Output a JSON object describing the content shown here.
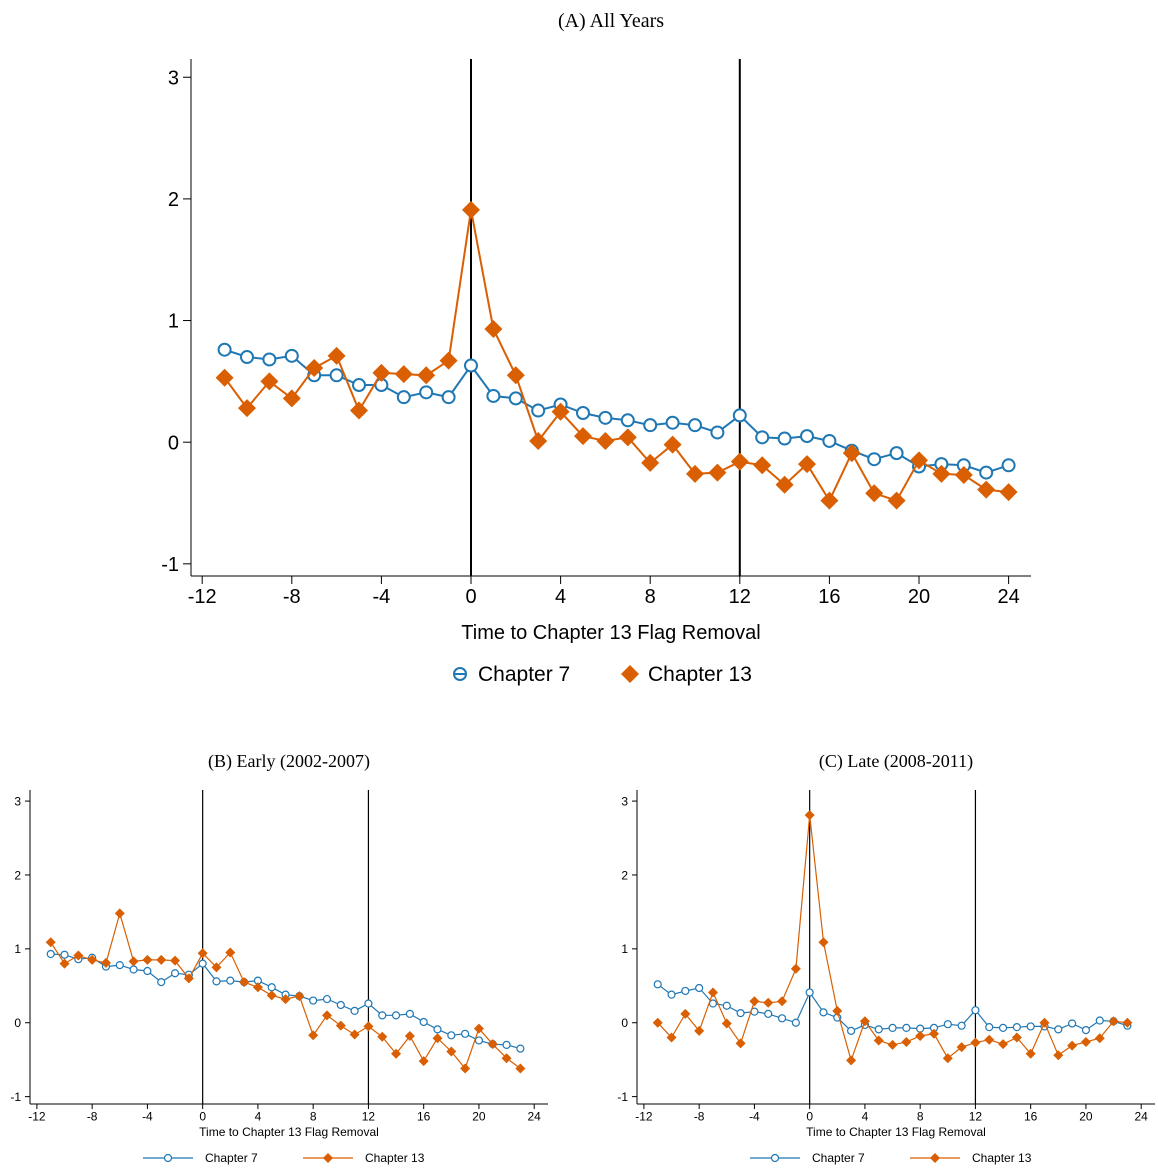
{
  "colors": {
    "chapter7": "#1f77b4",
    "chapter13": "#d95f02"
  },
  "chart_data": [
    {
      "type": "line",
      "title": "(A) All Years",
      "xlabel": "Time to Chapter 13 Flag Removal",
      "ylabel": "",
      "xlim": [
        -12.5,
        25
      ],
      "ylim": [
        -1.1,
        3.15
      ],
      "xticks": [
        -12,
        -8,
        -4,
        0,
        4,
        8,
        12,
        16,
        20,
        24
      ],
      "yticks": [
        -1,
        0,
        1,
        2,
        3
      ],
      "vlines": [
        0,
        12
      ],
      "grid": false,
      "legend_position": "bottom",
      "x": [
        -11,
        -10,
        -9,
        -8,
        -7,
        -6,
        -5,
        -4,
        -3,
        -2,
        -1,
        0,
        1,
        2,
        3,
        4,
        5,
        6,
        7,
        8,
        9,
        10,
        11,
        12,
        13,
        14,
        15,
        16,
        17,
        18,
        19,
        20,
        21,
        22,
        23,
        24
      ],
      "series": [
        {
          "name": "Chapter 7",
          "marker": "circle",
          "values": [
            0.76,
            0.7,
            0.68,
            0.71,
            0.55,
            0.55,
            0.47,
            0.47,
            0.37,
            0.41,
            0.37,
            0.63,
            0.38,
            0.36,
            0.26,
            0.31,
            0.24,
            0.2,
            0.18,
            0.14,
            0.16,
            0.14,
            0.08,
            0.22,
            0.04,
            0.03,
            0.05,
            0.01,
            -0.07,
            -0.14,
            -0.09,
            -0.2,
            -0.18,
            -0.19,
            -0.25,
            -0.19
          ]
        },
        {
          "name": "Chapter 13",
          "marker": "diamond",
          "values": [
            0.53,
            0.28,
            0.5,
            0.36,
            0.61,
            0.71,
            0.26,
            0.57,
            0.56,
            0.55,
            0.67,
            1.91,
            0.93,
            0.55,
            0.01,
            0.25,
            0.05,
            0.01,
            0.04,
            -0.17,
            -0.02,
            -0.26,
            -0.25,
            -0.16,
            -0.19,
            -0.35,
            -0.18,
            -0.48,
            -0.09,
            -0.42,
            -0.48,
            -0.15,
            -0.26,
            -0.27,
            -0.39,
            -0.41
          ]
        }
      ]
    },
    {
      "type": "line",
      "title": "(B) Early (2002-2007)",
      "xlabel": "Time to Chapter 13 Flag Removal",
      "ylabel": "",
      "xlim": [
        -12.5,
        25
      ],
      "ylim": [
        -1.1,
        3.15
      ],
      "xticks": [
        -12,
        -8,
        -4,
        0,
        4,
        8,
        12,
        16,
        20,
        24
      ],
      "yticks": [
        -1,
        0,
        1,
        2,
        3
      ],
      "vlines": [
        0,
        12
      ],
      "grid": false,
      "legend_position": "bottom",
      "x": [
        -11,
        -10,
        -9,
        -8,
        -7,
        -6,
        -5,
        -4,
        -3,
        -2,
        -1,
        0,
        1,
        2,
        3,
        4,
        5,
        6,
        7,
        8,
        9,
        10,
        11,
        12,
        13,
        14,
        15,
        16,
        17,
        18,
        19,
        20,
        21,
        22,
        23
      ],
      "series": [
        {
          "name": "Chapter 7",
          "marker": "circle",
          "values": [
            0.93,
            0.92,
            0.86,
            0.88,
            0.76,
            0.78,
            0.72,
            0.7,
            0.55,
            0.67,
            0.65,
            0.8,
            0.56,
            0.57,
            0.55,
            0.57,
            0.48,
            0.38,
            0.36,
            0.3,
            0.32,
            0.24,
            0.16,
            0.26,
            0.1,
            0.1,
            0.12,
            0.01,
            -0.09,
            -0.17,
            -0.15,
            -0.24,
            -0.29,
            -0.3,
            -0.35
          ]
        },
        {
          "name": "Chapter 13",
          "marker": "diamond",
          "values": [
            1.09,
            0.8,
            0.91,
            0.85,
            0.81,
            1.48,
            0.83,
            0.85,
            0.85,
            0.84,
            0.6,
            0.94,
            0.75,
            0.95,
            0.55,
            0.48,
            0.37,
            0.32,
            0.36,
            -0.17,
            0.1,
            -0.04,
            -0.16,
            -0.05,
            -0.19,
            -0.42,
            -0.18,
            -0.52,
            -0.21,
            -0.39,
            -0.62,
            -0.08,
            -0.29,
            -0.48,
            -0.62
          ]
        }
      ]
    },
    {
      "type": "line",
      "title": "(C) Late (2008-2011)",
      "xlabel": "Time to Chapter 13 Flag Removal",
      "ylabel": "",
      "xlim": [
        -12.5,
        25
      ],
      "ylim": [
        -1.1,
        3.15
      ],
      "xticks": [
        -12,
        -8,
        -4,
        0,
        4,
        8,
        12,
        16,
        20,
        24
      ],
      "yticks": [
        -1,
        0,
        1,
        2,
        3
      ],
      "vlines": [
        0,
        12
      ],
      "grid": false,
      "legend_position": "bottom",
      "x": [
        -11,
        -10,
        -9,
        -8,
        -7,
        -6,
        -5,
        -4,
        -3,
        -2,
        -1,
        0,
        1,
        2,
        3,
        4,
        5,
        6,
        7,
        8,
        9,
        10,
        11,
        12,
        13,
        14,
        15,
        16,
        17,
        18,
        19,
        20,
        21,
        22,
        23
      ],
      "series": [
        {
          "name": "Chapter 7",
          "marker": "circle",
          "values": [
            0.52,
            0.38,
            0.43,
            0.47,
            0.26,
            0.23,
            0.13,
            0.15,
            0.12,
            0.06,
            0.0,
            0.41,
            0.14,
            0.07,
            -0.11,
            -0.03,
            -0.09,
            -0.07,
            -0.07,
            -0.08,
            -0.07,
            -0.02,
            -0.04,
            0.17,
            -0.06,
            -0.07,
            -0.06,
            -0.05,
            -0.05,
            -0.09,
            -0.01,
            -0.1,
            0.03,
            0.02,
            -0.04
          ]
        },
        {
          "name": "Chapter 13",
          "marker": "diamond",
          "values": [
            0.0,
            -0.2,
            0.12,
            -0.11,
            0.41,
            -0.01,
            -0.28,
            0.29,
            0.27,
            0.29,
            0.73,
            2.81,
            1.09,
            0.16,
            -0.51,
            0.02,
            -0.24,
            -0.3,
            -0.26,
            -0.18,
            -0.15,
            -0.48,
            -0.33,
            -0.27,
            -0.23,
            -0.29,
            -0.2,
            -0.42,
            0.0,
            -0.44,
            -0.31,
            -0.26,
            -0.21,
            0.02,
            0.0
          ]
        }
      ]
    }
  ]
}
